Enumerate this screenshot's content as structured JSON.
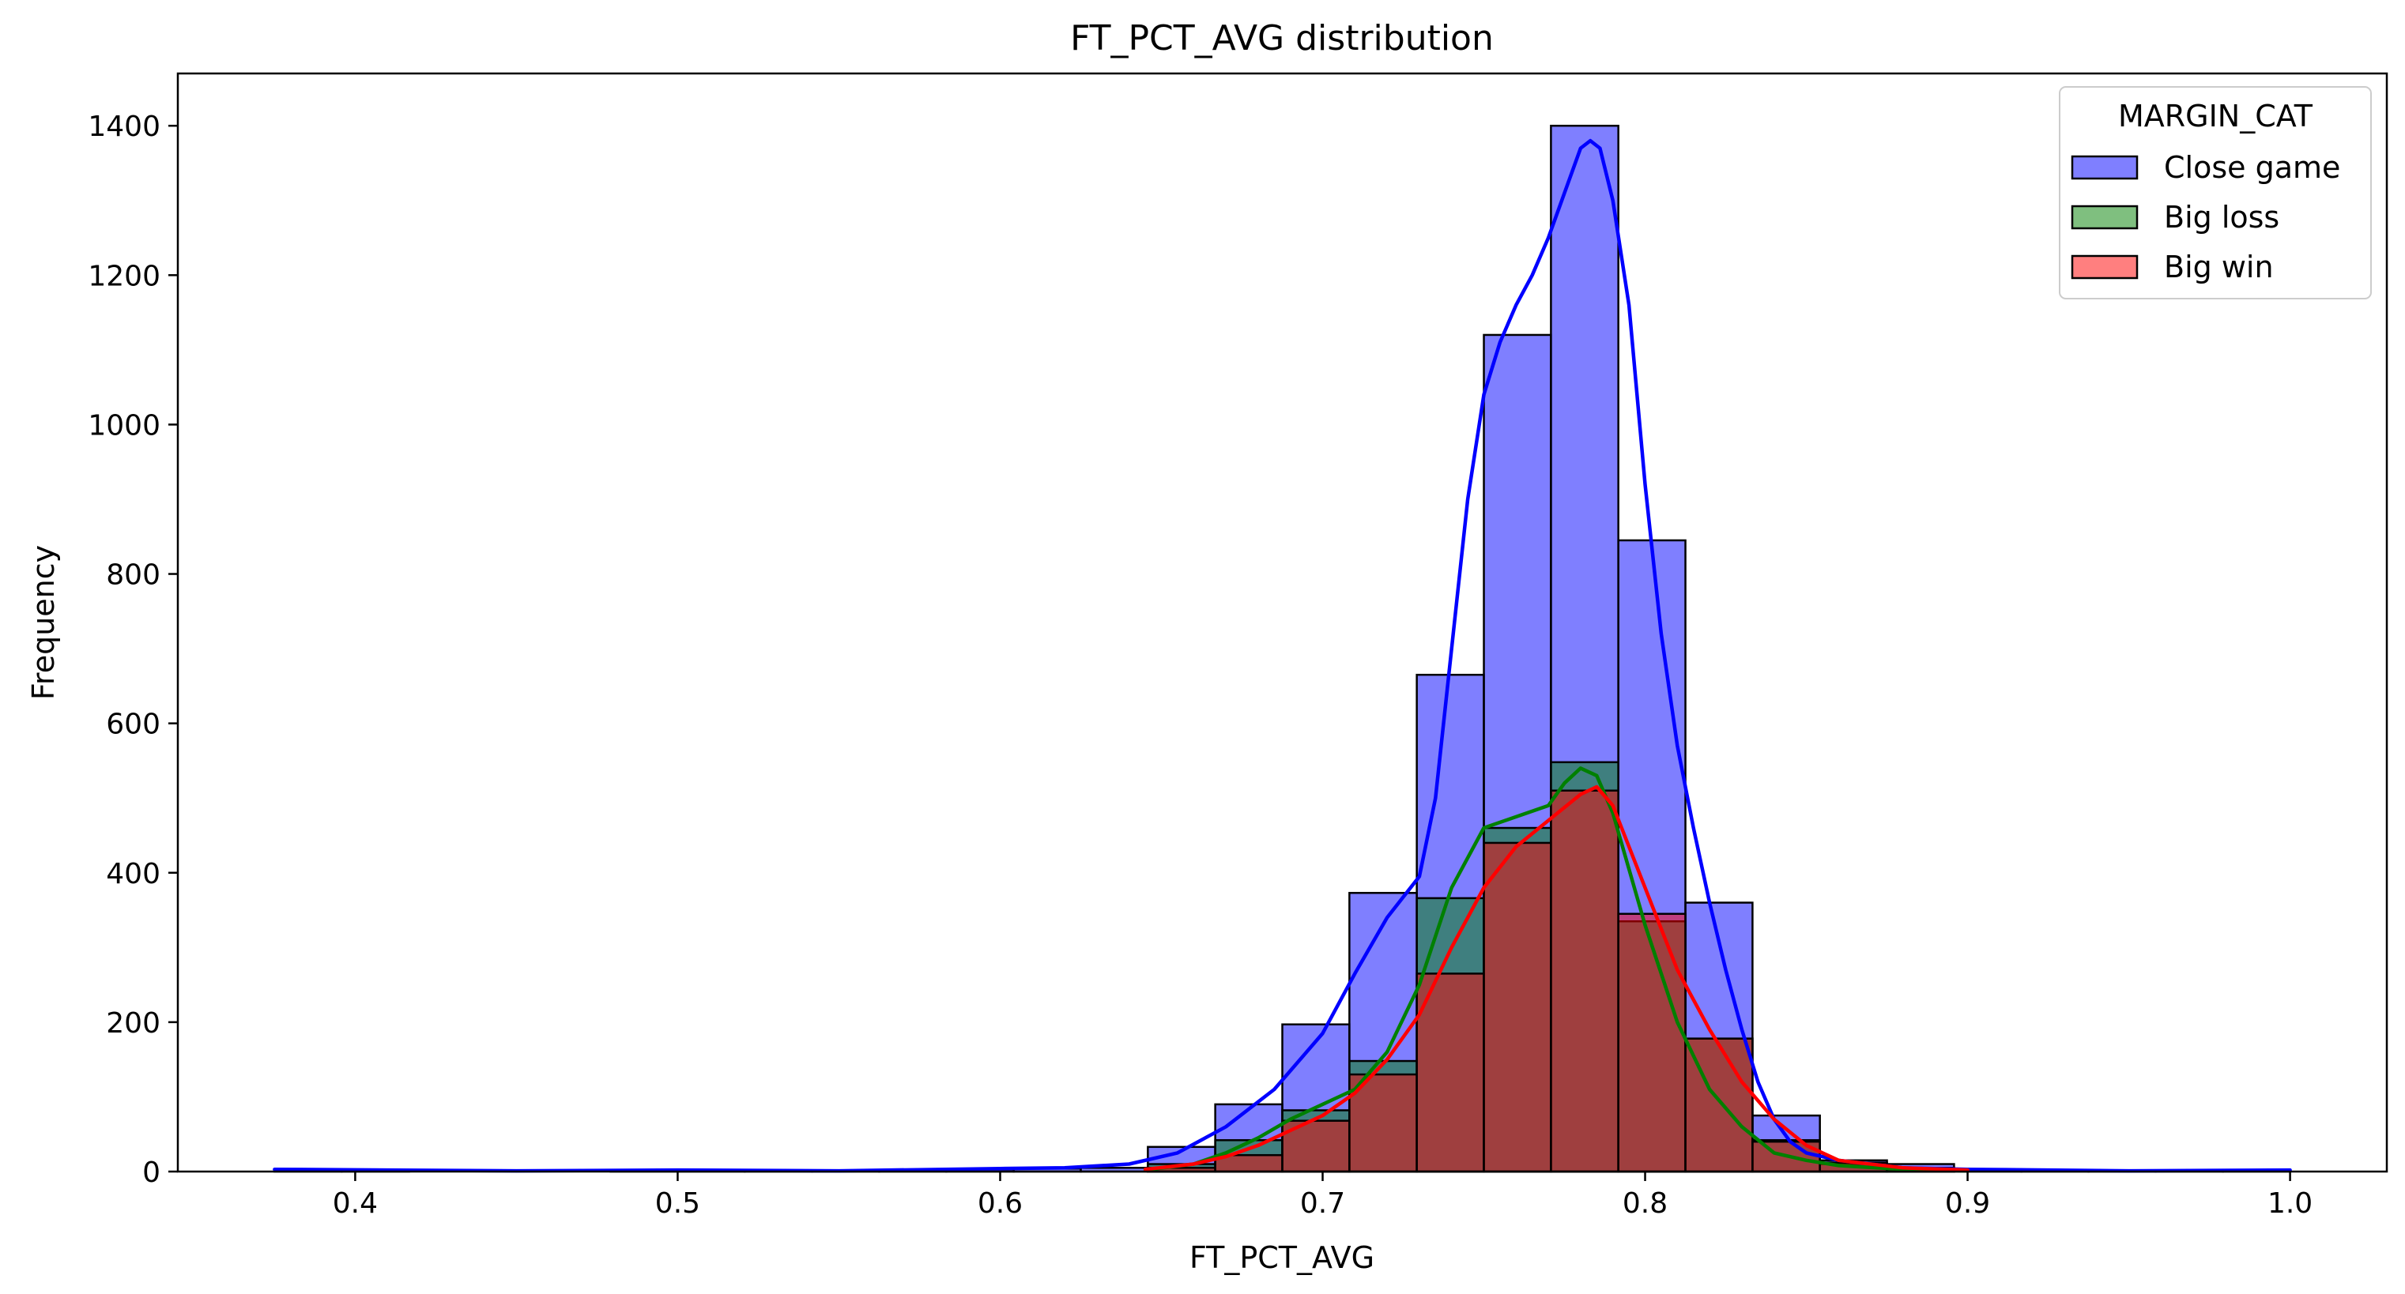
{
  "chart_data": {
    "type": "bar",
    "title": "FT_PCT_AVG distribution",
    "xlabel": "FT_PCT_AVG",
    "ylabel": "Frequency",
    "xlim": [
      0.345,
      1.03
    ],
    "ylim": [
      0,
      1470
    ],
    "x_ticks": [
      0.4,
      0.5,
      0.6,
      0.7,
      0.8,
      0.9,
      1.0
    ],
    "x_tick_labels": [
      "0.4",
      "0.5",
      "0.6",
      "0.7",
      "0.8",
      "0.9",
      "1.0"
    ],
    "y_ticks": [
      0,
      200,
      400,
      600,
      800,
      1000,
      1200,
      1400
    ],
    "y_tick_labels": [
      "0",
      "200",
      "400",
      "600",
      "800",
      "1000",
      "1200",
      "1400"
    ],
    "grid": false,
    "legend": {
      "title": "MARGIN_CAT",
      "placement": "top-right"
    },
    "bin_edges": [
      0.375,
      0.3958,
      0.4167,
      0.4375,
      0.4583,
      0.4792,
      0.5,
      0.5208,
      0.5417,
      0.5625,
      0.5833,
      0.6042,
      0.625,
      0.6458,
      0.6667,
      0.6875,
      0.7083,
      0.7292,
      0.75,
      0.7708,
      0.7917,
      0.8125,
      0.8333,
      0.8542,
      0.875,
      0.8958,
      0.9167,
      0.9375,
      0.9583,
      0.9792,
      1.0
    ],
    "series": [
      {
        "name": "Close game",
        "fill": "#0000ff",
        "line": "#0000ff",
        "counts": [
          2,
          1,
          0,
          0,
          0,
          1,
          2,
          1,
          1,
          2,
          3,
          4,
          5,
          33,
          90,
          197,
          373,
          665,
          1120,
          1400,
          845,
          360,
          75,
          15,
          10,
          3,
          2,
          1,
          1,
          2
        ],
        "kde_x": [
          0.375,
          0.45,
          0.5,
          0.55,
          0.6,
          0.62,
          0.64,
          0.655,
          0.67,
          0.685,
          0.7,
          0.71,
          0.72,
          0.73,
          0.735,
          0.74,
          0.745,
          0.75,
          0.755,
          0.76,
          0.765,
          0.77,
          0.775,
          0.78,
          0.783,
          0.786,
          0.79,
          0.795,
          0.8,
          0.805,
          0.81,
          0.815,
          0.82,
          0.825,
          0.83,
          0.835,
          0.84,
          0.845,
          0.85,
          0.86,
          0.87,
          0.88,
          0.9,
          0.95,
          1.0
        ],
        "kde_y": [
          3,
          1,
          2,
          1,
          4,
          5,
          10,
          25,
          60,
          110,
          185,
          265,
          340,
          395,
          500,
          700,
          900,
          1040,
          1110,
          1160,
          1200,
          1250,
          1310,
          1370,
          1380,
          1370,
          1300,
          1160,
          920,
          720,
          570,
          460,
          360,
          270,
          190,
          120,
          70,
          40,
          25,
          15,
          10,
          5,
          3,
          1,
          2
        ]
      },
      {
        "name": "Big loss",
        "fill": "#008000",
        "line": "#008000",
        "counts": [
          0,
          0,
          0,
          0,
          0,
          0,
          0,
          0,
          0,
          0,
          0,
          0,
          0,
          10,
          42,
          82,
          148,
          366,
          460,
          548,
          335,
          178,
          42,
          10,
          5,
          0,
          0,
          0,
          0,
          0
        ],
        "kde_x": [
          0.645,
          0.66,
          0.67,
          0.68,
          0.69,
          0.7,
          0.71,
          0.72,
          0.73,
          0.74,
          0.75,
          0.76,
          0.77,
          0.775,
          0.78,
          0.785,
          0.79,
          0.8,
          0.81,
          0.82,
          0.83,
          0.84,
          0.85,
          0.86,
          0.88,
          0.9
        ],
        "kde_y": [
          2,
          10,
          25,
          45,
          70,
          90,
          110,
          160,
          250,
          380,
          460,
          475,
          490,
          520,
          540,
          530,
          480,
          330,
          200,
          110,
          60,
          25,
          15,
          8,
          3,
          1
        ]
      },
      {
        "name": "Big win",
        "fill": "#ff0000",
        "line": "#ff0000",
        "counts": [
          0,
          0,
          0,
          0,
          0,
          0,
          0,
          0,
          0,
          0,
          0,
          0,
          0,
          5,
          22,
          68,
          130,
          265,
          440,
          510,
          345,
          178,
          40,
          12,
          3,
          0,
          0,
          0,
          0,
          0
        ],
        "kde_x": [
          0.645,
          0.66,
          0.67,
          0.68,
          0.69,
          0.7,
          0.71,
          0.72,
          0.73,
          0.74,
          0.75,
          0.76,
          0.77,
          0.78,
          0.785,
          0.79,
          0.8,
          0.81,
          0.82,
          0.83,
          0.84,
          0.85,
          0.86,
          0.88,
          0.9
        ],
        "kde_y": [
          3,
          10,
          20,
          35,
          55,
          75,
          105,
          150,
          210,
          300,
          380,
          435,
          470,
          505,
          515,
          490,
          380,
          270,
          190,
          120,
          70,
          35,
          15,
          5,
          2
        ]
      }
    ]
  }
}
